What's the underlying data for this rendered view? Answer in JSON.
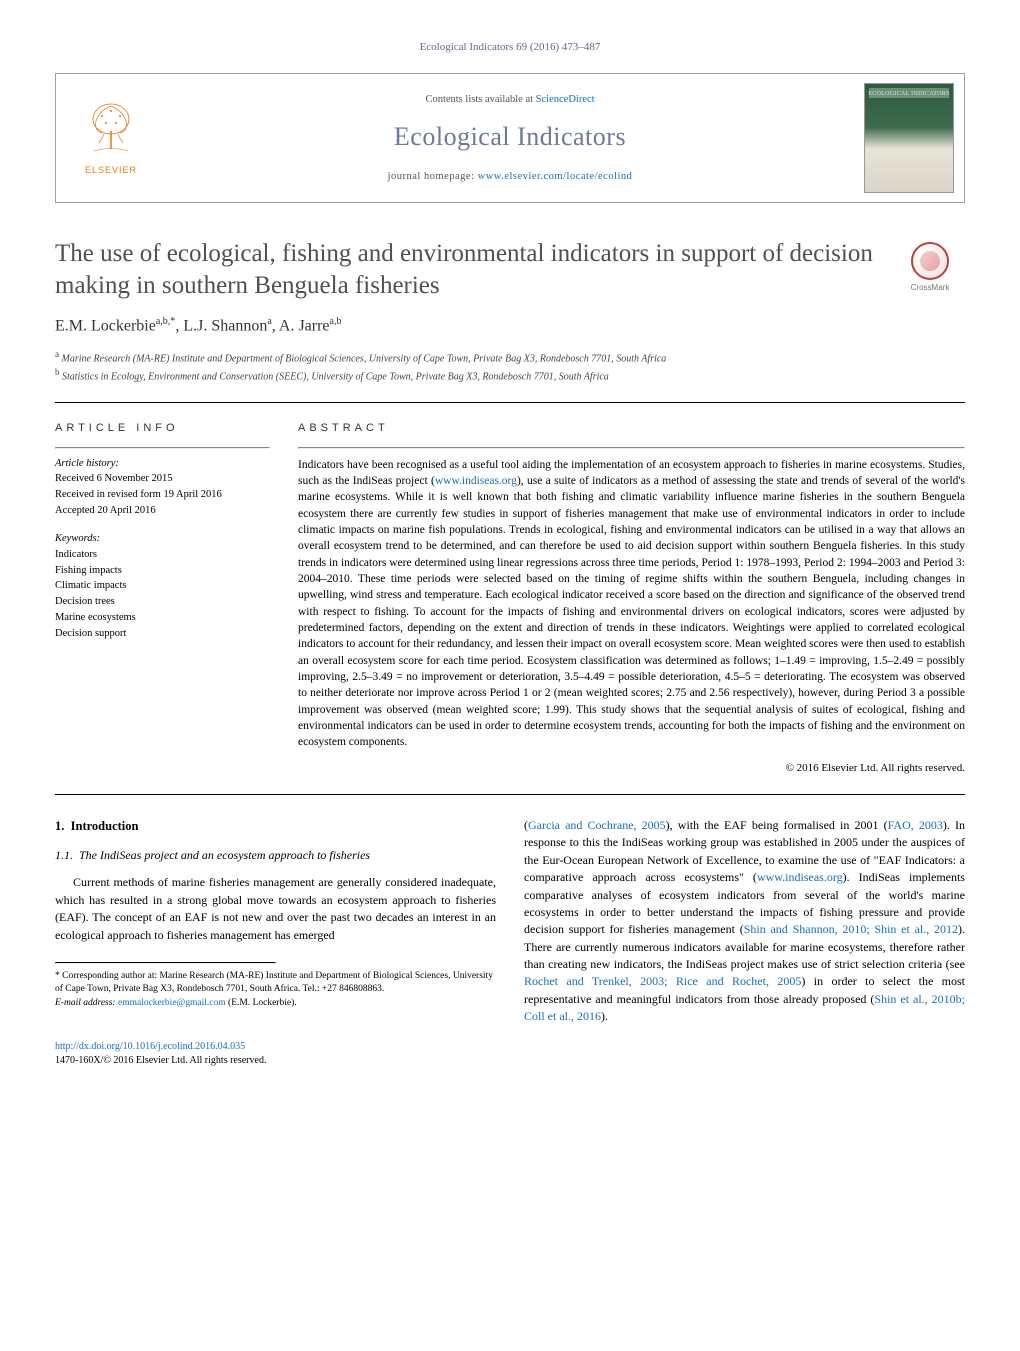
{
  "header": {
    "citation": "Ecological Indicators 69 (2016) 473–487",
    "contents_prefix": "Contents lists available at ",
    "contents_link": "ScienceDirect",
    "journal_name": "Ecological Indicators",
    "homepage_prefix": "journal homepage: ",
    "homepage_link": "www.elsevier.com/locate/ecolind",
    "publisher": "ELSEVIER",
    "cover_label": "ECOLOGICAL INDICATORS"
  },
  "crossmark": {
    "label": "CrossMark"
  },
  "article": {
    "title": "The use of ecological, fishing and environmental indicators in support of decision making in southern Benguela fisheries",
    "authors_html": "E.M. Lockerbie<sup>a,b,*</sup>, L.J. Shannon<sup>a</sup>, A. Jarre<sup>a,b</sup>",
    "affiliations": [
      {
        "sup": "a",
        "text": "Marine Research (MA-RE) Institute and Department of Biological Sciences, University of Cape Town, Private Bag X3, Rondebosch 7701, South Africa"
      },
      {
        "sup": "b",
        "text": "Statistics in Ecology, Environment and Conservation (SEEC), University of Cape Town, Private Bag X3, Rondebosch 7701, South Africa"
      }
    ]
  },
  "info": {
    "heading": "article info",
    "history_label": "Article history:",
    "history": [
      "Received 6 November 2015",
      "Received in revised form 19 April 2016",
      "Accepted 20 April 2016"
    ],
    "keywords_label": "Keywords:",
    "keywords": [
      "Indicators",
      "Fishing impacts",
      "Climatic impacts",
      "Decision trees",
      "Marine ecosystems",
      "Decision support"
    ]
  },
  "abstract": {
    "heading": "abstract",
    "text_before_link1": "Indicators have been recognised as a useful tool aiding the implementation of an ecosystem approach to fisheries in marine ecosystems. Studies, such as the IndiSeas project (",
    "link1": "www.indiseas.org",
    "text_after_link1": "), use a suite of indicators as a method of assessing the state and trends of several of the world's marine ecosystems. While it is well known that both fishing and climatic variability influence marine fisheries in the southern Benguela ecosystem there are currently few studies in support of fisheries management that make use of environmental indicators in order to include climatic impacts on marine fish populations. Trends in ecological, fishing and environmental indicators can be utilised in a way that allows an overall ecosystem trend to be determined, and can therefore be used to aid decision support within southern Benguela fisheries. In this study trends in indicators were determined using linear regressions across three time periods, Period 1: 1978–1993, Period 2: 1994–2003 and Period 3: 2004–2010. These time periods were selected based on the timing of regime shifts within the southern Benguela, including changes in upwelling, wind stress and temperature. Each ecological indicator received a score based on the direction and significance of the observed trend with respect to fishing. To account for the impacts of fishing and environmental drivers on ecological indicators, scores were adjusted by predetermined factors, depending on the extent and direction of trends in these indicators. Weightings were applied to correlated ecological indicators to account for their redundancy, and lessen their impact on overall ecosystem score. Mean weighted scores were then used to establish an overall ecosystem score for each time period. Ecosystem classification was determined as follows; 1–1.49 = improving, 1.5–2.49 = possibly improving, 2.5–3.49 = no improvement or deterioration, 3.5–4.49 = possible deterioration, 4.5–5 = deteriorating. The ecosystem was observed to neither deteriorate nor improve across Period 1 or 2 (mean weighted scores; 2.75 and 2.56 respectively), however, during Period 3 a possible improvement was observed (mean weighted score; 1.99). This study shows that the sequential analysis of suites of ecological, fishing and environmental indicators can be used in order to determine ecosystem trends, accounting for both the impacts of fishing and the environment on ecosystem components.",
    "copyright": "© 2016 Elsevier Ltd. All rights reserved."
  },
  "body": {
    "left": {
      "sec_num": "1.",
      "sec_title": "Introduction",
      "subsec_num": "1.1.",
      "subsec_title": "The IndiSeas project and an ecosystem approach to fisheries",
      "para": "Current methods of marine fisheries management are generally considered inadequate, which has resulted in a strong global move towards an ecosystem approach to fisheries (EAF). The concept of an EAF is not new and over the past two decades an interest in an ecological approach to fisheries management has emerged"
    },
    "right": {
      "seg1": "(",
      "link1": "Garcia and Cochrane, 2005",
      "seg2": "), with the EAF being formalised in 2001 (",
      "link2": "FAO, 2003",
      "seg3": "). In response to this the IndiSeas working group was established in 2005 under the auspices of the Eur-Ocean European Network of Excellence, to examine the use of \"EAF Indicators: a comparative approach across ecosystems\" (",
      "link3": "www.indiseas.org",
      "seg4": "). IndiSeas implements comparative analyses of ecosystem indicators from several of the world's marine ecosystems in order to better understand the impacts of fishing pressure and provide decision support for fisheries management (",
      "link4": "Shin and Shannon, 2010; Shin et al., 2012",
      "seg5": "). There are currently numerous indicators available for marine ecosystems, therefore rather than creating new indicators, the IndiSeas project makes use of strict selection criteria (see ",
      "link5": "Rochet and Trenkel, 2003; Rice and Rochet, 2005",
      "seg6": ") in order to select the most representative and meaningful indicators from those already proposed (",
      "link6": "Shin et al., 2010b; Coll et al., 2016",
      "seg7": ")."
    }
  },
  "footnote": {
    "corr_label": "* Corresponding author at:",
    "corr_text": " Marine Research (MA-RE) Institute and Department of Biological Sciences, University of Cape Town, Private Bag X3, Rondebosch 7701, South Africa. Tel.: +27 846808863.",
    "email_label": "E-mail address: ",
    "email": "emmalockerbie@gmail.com",
    "email_suffix": " (E.M. Lockerbie)."
  },
  "footer": {
    "doi": "http://dx.doi.org/10.1016/j.ecolind.2016.04.035",
    "issn_line": "1470-160X/© 2016 Elsevier Ltd. All rights reserved."
  },
  "colors": {
    "link": "#1a6eb8",
    "journal_gray": "#6b7a99",
    "elsevier_orange": "#e67817",
    "title_gray": "#505050"
  }
}
